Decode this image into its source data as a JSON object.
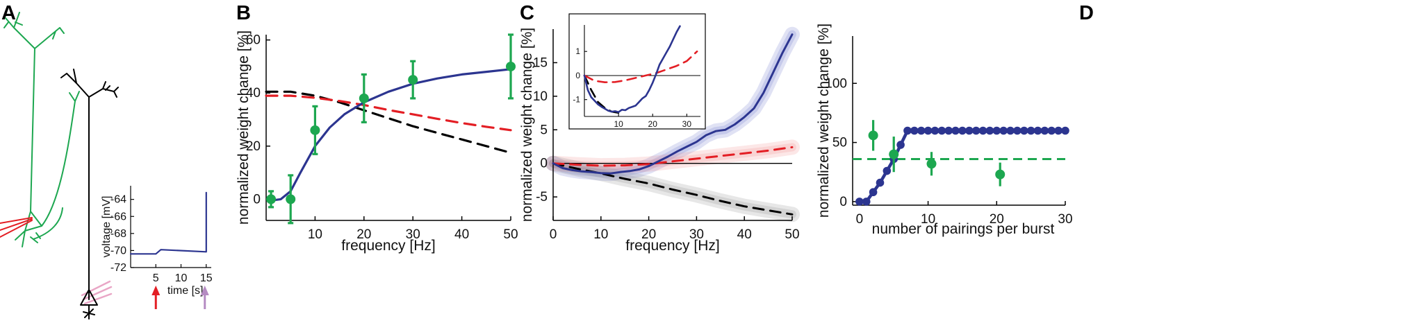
{
  "panel_labels": {
    "a": "A",
    "b": "B",
    "c": "C",
    "d": "D"
  },
  "colors": {
    "blue": "#2c3590",
    "red": "#e31e24",
    "black": "#000000",
    "green": "#1da750",
    "pink": "#e9a6c6",
    "purple": "#b58bc2"
  },
  "neuron_icon": "pyramidal-neuron-pair",
  "chart_data": [
    {
      "id": "A-inset",
      "type": "line",
      "xlabel": "time [s]",
      "ylabel": "voltage [mV]",
      "xlim": [
        0,
        16
      ],
      "ylim": [
        -72,
        -62.4
      ],
      "xticks": [
        5,
        10,
        15
      ],
      "yticks": [
        -72,
        -70,
        -68,
        -66,
        -64
      ],
      "series": [
        {
          "name": "membrane voltage",
          "color": "#2c3590",
          "x": [
            0,
            5,
            6,
            15,
            15,
            15
          ],
          "y": [
            -70.4,
            -70.4,
            -69.9,
            -70.15,
            -70.15,
            -63.2
          ]
        }
      ],
      "arrows": [
        {
          "x": 5,
          "color": "#e31e24"
        },
        {
          "x": 15,
          "color": "#b58bc2"
        }
      ]
    },
    {
      "id": "B",
      "type": "line",
      "xlabel": "frequency [Hz]",
      "ylabel": "normalized weight change [%]",
      "xlim": [
        0,
        50
      ],
      "ylim": [
        -8,
        62
      ],
      "xticks": [
        10,
        20,
        30,
        40,
        50
      ],
      "yticks": [
        0,
        20,
        40,
        60
      ],
      "series": [
        {
          "name": "model fit",
          "color": "#2c3590",
          "style": "solid",
          "x": [
            1,
            3,
            5,
            7,
            10,
            13,
            16,
            20,
            25,
            30,
            35,
            40,
            45,
            50
          ],
          "y": [
            -0.5,
            0,
            3,
            10,
            20,
            27,
            32,
            36.5,
            40.5,
            43.5,
            45.5,
            47,
            48,
            49
          ]
        },
        {
          "name": "red dashed",
          "color": "#e31e24",
          "style": "dashed",
          "x": [
            0,
            5,
            10,
            15,
            20,
            25,
            30,
            35,
            40,
            45,
            50
          ],
          "y": [
            39,
            39,
            38.2,
            37,
            35.5,
            33.6,
            32,
            30.3,
            28.7,
            27.3,
            26
          ]
        },
        {
          "name": "black dashed",
          "color": "#000000",
          "style": "dashed",
          "x": [
            0,
            5,
            10,
            15,
            20,
            25,
            30,
            35,
            40,
            45,
            50
          ],
          "y": [
            40.5,
            40.5,
            39,
            36.5,
            33.5,
            30.5,
            27.5,
            25,
            22.5,
            20,
            17.5
          ]
        }
      ],
      "points": {
        "name": "data",
        "color": "#1da750",
        "x": [
          1,
          5,
          10,
          20,
          30,
          50
        ],
        "y": [
          0,
          0,
          26,
          38,
          45,
          50
        ],
        "err": [
          3,
          9,
          9,
          9,
          7,
          12
        ]
      }
    },
    {
      "id": "C",
      "type": "line",
      "xlabel": "frequency [Hz]",
      "ylabel": "normalized weight change [%]",
      "xlim": [
        0,
        50
      ],
      "ylim": [
        -8.5,
        20
      ],
      "xticks": [
        0,
        10,
        20,
        30,
        40,
        50
      ],
      "yticks": [
        -5,
        0,
        5,
        10,
        15
      ],
      "series": [
        {
          "name": "blue",
          "color": "#2c3590",
          "style": "solid",
          "x": [
            0,
            2,
            4,
            6,
            8,
            10,
            12,
            14,
            16,
            18,
            20,
            22,
            24,
            26,
            28,
            30,
            32,
            34,
            36,
            38,
            40,
            42,
            44,
            46,
            48,
            50
          ],
          "y": [
            0,
            -0.7,
            -1,
            -1.2,
            -1.3,
            -1.45,
            -1.5,
            -1.3,
            -1.15,
            -0.9,
            -0.4,
            0.3,
            1,
            1.8,
            2.5,
            3.2,
            4.2,
            4.8,
            5,
            5.8,
            6.9,
            8.2,
            10.5,
            13.5,
            16.5,
            19.2
          ]
        },
        {
          "name": "red dashed",
          "color": "#e31e24",
          "style": "dashed",
          "x": [
            0,
            5,
            10,
            15,
            20,
            25,
            30,
            35,
            40,
            45,
            50
          ],
          "y": [
            0,
            -0.2,
            -0.35,
            -0.3,
            -0.1,
            0.3,
            0.7,
            1.1,
            1.5,
            1.9,
            2.4
          ]
        },
        {
          "name": "black dashed",
          "color": "#000000",
          "style": "dashed",
          "x": [
            0,
            5,
            10,
            15,
            20,
            25,
            30,
            35,
            40,
            45,
            50
          ],
          "y": [
            0,
            -0.8,
            -1.5,
            -2.3,
            -3,
            -3.9,
            -4.7,
            -5.6,
            -6.4,
            -7,
            -7.6
          ]
        }
      ],
      "inset": {
        "xlim": [
          0,
          34
        ],
        "ylim": [
          -1.7,
          2.1
        ],
        "xticks": [
          10,
          20,
          30
        ],
        "yticks": [
          -1,
          0,
          1
        ],
        "series": [
          {
            "name": "blue",
            "color": "#2c3590",
            "style": "solid",
            "x": [
              0,
              1,
              2,
              3,
              4,
              5,
              6,
              7,
              8,
              9,
              10,
              11,
              12,
              13,
              14,
              15,
              16,
              17,
              18,
              19,
              20,
              21,
              22,
              23,
              24,
              25,
              26,
              27,
              28
            ],
            "y": [
              0,
              -0.6,
              -0.9,
              -1.05,
              -1.2,
              -1.3,
              -1.38,
              -1.46,
              -1.5,
              -1.48,
              -1.52,
              -1.42,
              -1.44,
              -1.35,
              -1.3,
              -1.25,
              -1.1,
              -0.95,
              -0.85,
              -0.6,
              -0.3,
              0.05,
              0.45,
              0.7,
              0.95,
              1.2,
              1.5,
              1.8,
              2.05
            ]
          },
          {
            "name": "red dashed",
            "color": "#e31e24",
            "style": "dashed",
            "x": [
              0,
              3,
              6,
              9,
              12,
              15,
              18,
              21,
              24,
              27,
              30,
              33
            ],
            "y": [
              0,
              -0.22,
              -0.28,
              -0.27,
              -0.2,
              -0.1,
              0,
              0.1,
              0.25,
              0.4,
              0.6,
              1
            ]
          },
          {
            "name": "black dashed",
            "color": "#000000",
            "style": "dashed",
            "x": [
              0,
              2,
              4,
              6,
              8,
              10
            ],
            "y": [
              0,
              -0.6,
              -1.1,
              -1.35,
              -1.5,
              -1.55
            ]
          }
        ]
      }
    },
    {
      "id": "D",
      "type": "scatter",
      "xlabel": "number of pairings per burst",
      "ylabel": "normalized weight change [%]",
      "xlim": [
        -1,
        30
      ],
      "ylim": [
        -3,
        140
      ],
      "xticks": [
        0,
        10,
        20,
        30
      ],
      "yticks": [
        0,
        50,
        100
      ],
      "model": {
        "name": "model",
        "color": "#2c3590",
        "x": [
          0,
          1,
          2,
          3,
          4,
          5,
          6,
          7,
          8,
          9,
          10,
          11,
          12,
          13,
          14,
          15,
          16,
          17,
          18,
          19,
          20,
          21,
          22,
          23,
          24,
          25,
          26,
          27,
          28,
          29,
          30
        ],
        "y": [
          0,
          0,
          8,
          16,
          26,
          36,
          48,
          60,
          60,
          60,
          60,
          60,
          60,
          60,
          60,
          60,
          60,
          60,
          60,
          60,
          60,
          60,
          60,
          60,
          60,
          60,
          60,
          60,
          60,
          60,
          60
        ]
      },
      "points": {
        "name": "data",
        "color": "#1da750",
        "x": [
          2,
          5,
          10.5,
          20.5
        ],
        "y": [
          56,
          40,
          32,
          23
        ],
        "err": [
          13,
          15,
          10,
          10
        ]
      },
      "hline": {
        "y": 36,
        "color": "#1da750",
        "style": "dashed"
      }
    }
  ]
}
